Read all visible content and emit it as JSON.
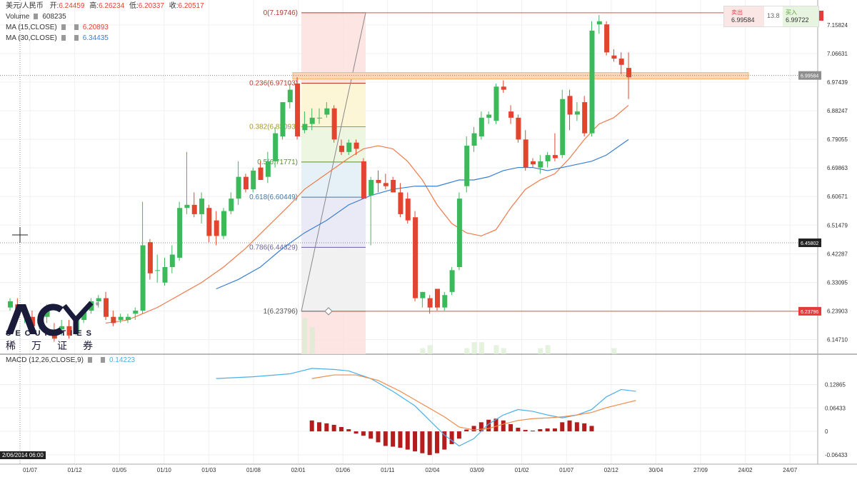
{
  "header": {
    "symbol": "美元/人民币",
    "ohlc": [
      {
        "label": "开:",
        "value": "6.24459"
      },
      {
        "label": "高:",
        "value": "6.26234"
      },
      {
        "label": "低:",
        "value": "6.20337"
      },
      {
        "label": "收:",
        "value": "6.20517"
      }
    ],
    "volume_label": "Volume",
    "volume_value": "608235",
    "ma15_label": "MA (15,CLOSE)",
    "ma15_value": "6.20893",
    "ma30_label": "MA (30,CLOSE)",
    "ma30_value": "6.34435",
    "macd_label": "MACD (12,26,CLOSE,9)",
    "macd_value": "0.14223"
  },
  "trade_box": {
    "sell_label": "卖出",
    "sell_price": "6.99584",
    "spread": "13.8",
    "buy_label": "买入",
    "buy_price": "6.99722"
  },
  "logo": {
    "text": "ACY",
    "sub": "SECURITIES",
    "cn": "稀万证券"
  },
  "corner_label": "2/06/2014 06:00",
  "colors": {
    "up": "#3cb95a",
    "down": "#e2442f",
    "ma15": "#f07a4a",
    "ma30": "#3a7fd0",
    "macd_line": "#4ab0e8",
    "signal_line": "#f08a4b",
    "hist": "#b51c1c",
    "price_tag": "#444444",
    "red_tag": "#e53b3b",
    "fib_zone": "#f6b26b"
  },
  "chart_data": {
    "type": "candlestick",
    "ylim": [
      6.1,
      7.22
    ],
    "y_ticks": [
      "7.15824",
      "7.06631",
      "6.97439",
      "6.88247",
      "6.79055",
      "6.69863",
      "6.60671",
      "6.51479",
      "6.42287",
      "6.33095",
      "6.23903",
      "6.14710"
    ],
    "x_ticks": [
      "01/07",
      "01/12",
      "01/05",
      "01/10",
      "01/03",
      "01/08",
      "02/01",
      "01/06",
      "01/11",
      "02/04",
      "03/09",
      "01/02",
      "01/07",
      "02/12",
      "30/04",
      "27/09",
      "24/02",
      "24/07"
    ],
    "price_tags": {
      "current": "6.99584",
      "cursor": "6.45802",
      "low_line": "6.23796"
    },
    "candles": [
      [
        6.25,
        6.28,
        6.24,
        6.27
      ],
      [
        6.26,
        6.28,
        6.22,
        6.23
      ],
      [
        6.23,
        6.26,
        6.2,
        6.24
      ],
      [
        6.22,
        6.24,
        6.18,
        6.19
      ],
      [
        6.2,
        6.23,
        6.18,
        6.21
      ],
      [
        6.22,
        6.26,
        6.2,
        6.24
      ],
      [
        6.17,
        6.2,
        6.14,
        6.15
      ],
      [
        6.18,
        6.21,
        6.16,
        6.19
      ],
      [
        6.19,
        6.21,
        6.15,
        6.16
      ],
      [
        6.17,
        6.22,
        6.16,
        6.21
      ],
      [
        6.21,
        6.25,
        6.2,
        6.24
      ],
      [
        6.24,
        6.28,
        6.23,
        6.27
      ],
      [
        6.27,
        6.29,
        6.25,
        6.28
      ],
      [
        6.28,
        6.3,
        6.21,
        6.22
      ],
      [
        6.22,
        6.24,
        6.19,
        6.2
      ],
      [
        6.21,
        6.23,
        6.2,
        6.22
      ],
      [
        6.21,
        6.23,
        6.2,
        6.22
      ],
      [
        6.23,
        6.25,
        6.21,
        6.24
      ],
      [
        6.24,
        6.59,
        6.23,
        6.45
      ],
      [
        6.46,
        6.47,
        6.34,
        6.36
      ],
      [
        6.37,
        6.42,
        6.33,
        6.37
      ],
      [
        6.33,
        6.41,
        6.32,
        6.38
      ],
      [
        6.38,
        6.45,
        6.36,
        6.42
      ],
      [
        6.41,
        6.59,
        6.4,
        6.57
      ],
      [
        6.57,
        6.75,
        6.55,
        6.58
      ],
      [
        6.58,
        6.62,
        6.54,
        6.55
      ],
      [
        6.55,
        6.62,
        6.52,
        6.6
      ],
      [
        6.57,
        6.58,
        6.46,
        6.48
      ],
      [
        6.53,
        6.56,
        6.45,
        6.48
      ],
      [
        6.48,
        6.57,
        6.47,
        6.56
      ],
      [
        6.56,
        6.62,
        6.55,
        6.6
      ],
      [
        6.6,
        6.72,
        6.58,
        6.67
      ],
      [
        6.67,
        6.68,
        6.62,
        6.63
      ],
      [
        6.63,
        6.7,
        6.62,
        6.69
      ],
      [
        6.7,
        6.72,
        6.66,
        6.66
      ],
      [
        6.67,
        6.75,
        6.65,
        6.72
      ],
      [
        6.72,
        6.83,
        6.7,
        6.81
      ],
      [
        6.8,
        6.91,
        6.79,
        6.91
      ],
      [
        6.91,
        6.97,
        6.89,
        6.95
      ],
      [
        6.97,
        6.99,
        6.79,
        6.8
      ],
      [
        6.82,
        6.88,
        6.81,
        6.84
      ],
      [
        6.84,
        6.89,
        6.82,
        6.86
      ],
      [
        6.86,
        6.89,
        6.84,
        6.86
      ],
      [
        6.87,
        6.91,
        6.86,
        6.89
      ],
      [
        6.89,
        6.9,
        6.78,
        6.79
      ],
      [
        6.77,
        6.79,
        6.74,
        6.75
      ],
      [
        6.75,
        6.79,
        6.74,
        6.78
      ],
      [
        6.78,
        6.79,
        6.74,
        6.76
      ],
      [
        6.72,
        6.73,
        6.6,
        6.6
      ],
      [
        6.61,
        6.67,
        6.45,
        6.66
      ],
      [
        6.66,
        6.69,
        6.62,
        6.65
      ],
      [
        6.65,
        6.68,
        6.63,
        6.64
      ],
      [
        6.66,
        6.67,
        6.62,
        6.62
      ],
      [
        6.62,
        6.65,
        6.54,
        6.55
      ],
      [
        6.6,
        6.62,
        6.52,
        6.53
      ],
      [
        6.54,
        6.56,
        6.27,
        6.28
      ],
      [
        6.28,
        6.3,
        6.25,
        6.3
      ],
      [
        6.28,
        6.29,
        6.23,
        6.25
      ],
      [
        6.31,
        6.31,
        6.24,
        6.25
      ],
      [
        6.25,
        6.3,
        6.24,
        6.29
      ],
      [
        6.3,
        6.38,
        6.29,
        6.37
      ],
      [
        6.38,
        6.62,
        6.37,
        6.6
      ],
      [
        6.64,
        6.8,
        6.62,
        6.77
      ],
      [
        6.77,
        6.83,
        6.75,
        6.81
      ],
      [
        6.8,
        6.88,
        6.79,
        6.86
      ],
      [
        6.86,
        6.88,
        6.84,
        6.87
      ],
      [
        6.85,
        6.97,
        6.84,
        6.96
      ],
      [
        6.96,
        6.98,
        6.94,
        6.95
      ],
      [
        6.88,
        6.9,
        6.84,
        6.86
      ],
      [
        6.86,
        6.87,
        6.78,
        6.79
      ],
      [
        6.79,
        6.82,
        6.69,
        6.7
      ],
      [
        6.72,
        6.73,
        6.7,
        6.71
      ],
      [
        6.7,
        6.74,
        6.68,
        6.72
      ],
      [
        6.72,
        6.75,
        6.7,
        6.74
      ],
      [
        6.74,
        6.81,
        6.72,
        6.73
      ],
      [
        6.74,
        6.95,
        6.73,
        6.92
      ],
      [
        6.93,
        6.95,
        6.82,
        6.87
      ],
      [
        6.87,
        6.91,
        6.85,
        6.88
      ],
      [
        6.91,
        6.93,
        6.8,
        6.81
      ],
      [
        6.81,
        7.17,
        6.8,
        7.14
      ],
      [
        7.16,
        7.19,
        7.13,
        7.17
      ],
      [
        7.16,
        7.17,
        7.06,
        7.07
      ],
      [
        7.06,
        7.08,
        7.04,
        7.05
      ],
      [
        7.05,
        7.07,
        7.0,
        7.03
      ],
      [
        7.02,
        7.07,
        6.92,
        6.99
      ]
    ],
    "ma15": [
      [
        13,
        6.2
      ],
      [
        16,
        6.21
      ],
      [
        18,
        6.23
      ],
      [
        20,
        6.25
      ],
      [
        23,
        6.29
      ],
      [
        26,
        6.33
      ],
      [
        29,
        6.38
      ],
      [
        32,
        6.44
      ],
      [
        35,
        6.51
      ],
      [
        38,
        6.58
      ],
      [
        40,
        6.63
      ],
      [
        43,
        6.68
      ],
      [
        46,
        6.73
      ],
      [
        48,
        6.76
      ],
      [
        50,
        6.77
      ],
      [
        52,
        6.76
      ],
      [
        54,
        6.72
      ],
      [
        56,
        6.66
      ],
      [
        58,
        6.58
      ],
      [
        60,
        6.52
      ],
      [
        62,
        6.49
      ],
      [
        64,
        6.48
      ],
      [
        66,
        6.5
      ],
      [
        68,
        6.57
      ],
      [
        70,
        6.63
      ],
      [
        72,
        6.66
      ],
      [
        74,
        6.68
      ],
      [
        76,
        6.73
      ],
      [
        78,
        6.79
      ],
      [
        80,
        6.84
      ],
      [
        82,
        6.86
      ],
      [
        84,
        6.9
      ]
    ],
    "ma30": [
      [
        28,
        6.31
      ],
      [
        31,
        6.34
      ],
      [
        34,
        6.38
      ],
      [
        37,
        6.44
      ],
      [
        40,
        6.49
      ],
      [
        43,
        6.53
      ],
      [
        46,
        6.58
      ],
      [
        49,
        6.61
      ],
      [
        52,
        6.63
      ],
      [
        55,
        6.64
      ],
      [
        58,
        6.64
      ],
      [
        61,
        6.66
      ],
      [
        63,
        6.66
      ],
      [
        65,
        6.67
      ],
      [
        67,
        6.69
      ],
      [
        69,
        6.7
      ],
      [
        71,
        6.7
      ],
      [
        73,
        6.69
      ],
      [
        75,
        6.7
      ],
      [
        77,
        6.71
      ],
      [
        79,
        6.72
      ],
      [
        81,
        6.74
      ],
      [
        84,
        6.79
      ]
    ],
    "fibonacci": [
      {
        "label": "0(7.19746)",
        "value": 7.19746
      },
      {
        "label": "0.236(6.97103)",
        "value": 6.97103
      },
      {
        "label": "0.382(6.83093)",
        "value": 6.83093
      },
      {
        "label": "0.5(6.71771)",
        "value": 6.71771
      },
      {
        "label": "0.618(6.60449)",
        "value": 6.60449
      },
      {
        "label": "0.786(6.44329)",
        "value": 6.44329
      },
      {
        "label": "1(6.23796)",
        "value": 6.23796
      }
    ],
    "macd": {
      "y_ticks": [
        "0.12865",
        "0.06433",
        "0",
        "-0.06433"
      ],
      "ylim": [
        -0.09,
        0.21
      ],
      "macd_line": [
        [
          28,
          0.145
        ],
        [
          33,
          0.15
        ],
        [
          38,
          0.158
        ],
        [
          41,
          0.173
        ],
        [
          44,
          0.17
        ],
        [
          46,
          0.166
        ],
        [
          49,
          0.145
        ],
        [
          52,
          0.11
        ],
        [
          55,
          0.07
        ],
        [
          57,
          0.03
        ],
        [
          59,
          -0.01
        ],
        [
          61,
          -0.04
        ],
        [
          63,
          -0.02
        ],
        [
          65,
          0.02
        ],
        [
          67,
          0.045
        ],
        [
          69,
          0.06
        ],
        [
          71,
          0.055
        ],
        [
          73,
          0.045
        ],
        [
          75,
          0.037
        ],
        [
          77,
          0.045
        ],
        [
          79,
          0.06
        ],
        [
          81,
          0.095
        ],
        [
          83,
          0.115
        ],
        [
          85,
          0.11
        ]
      ],
      "signal_line": [
        [
          41,
          0.145
        ],
        [
          44,
          0.155
        ],
        [
          47,
          0.155
        ],
        [
          50,
          0.14
        ],
        [
          53,
          0.11
        ],
        [
          56,
          0.075
        ],
        [
          59,
          0.04
        ],
        [
          61,
          0.012
        ],
        [
          63,
          0.004
        ],
        [
          65,
          0.008
        ],
        [
          67,
          0.02
        ],
        [
          69,
          0.03
        ],
        [
          71,
          0.035
        ],
        [
          73,
          0.037
        ],
        [
          75,
          0.04
        ],
        [
          77,
          0.045
        ],
        [
          79,
          0.052
        ],
        [
          81,
          0.065
        ],
        [
          83,
          0.075
        ],
        [
          85,
          0.085
        ]
      ],
      "histogram": [
        [
          41,
          0.03
        ],
        [
          42,
          0.025
        ],
        [
          43,
          0.022
        ],
        [
          44,
          0.018
        ],
        [
          45,
          0.012
        ],
        [
          46,
          0.006
        ],
        [
          47,
          -0.006
        ],
        [
          48,
          -0.012
        ],
        [
          49,
          -0.02
        ],
        [
          50,
          -0.03
        ],
        [
          51,
          -0.04
        ],
        [
          52,
          -0.042
        ],
        [
          53,
          -0.045
        ],
        [
          54,
          -0.05
        ],
        [
          55,
          -0.055
        ],
        [
          56,
          -0.06
        ],
        [
          57,
          -0.065
        ],
        [
          58,
          -0.06
        ],
        [
          59,
          -0.05
        ],
        [
          60,
          -0.035
        ],
        [
          61,
          -0.02
        ],
        [
          62,
          0.005
        ],
        [
          63,
          0.015
        ],
        [
          64,
          0.025
        ],
        [
          65,
          0.032
        ],
        [
          66,
          0.035
        ],
        [
          67,
          0.03
        ],
        [
          68,
          0.02
        ],
        [
          69,
          0.01
        ],
        [
          70,
          0.004
        ],
        [
          71,
          0.002
        ],
        [
          72,
          0.006
        ],
        [
          73,
          0.008
        ],
        [
          74,
          0.008
        ],
        [
          75,
          0.025
        ],
        [
          76,
          0.03
        ],
        [
          77,
          0.025
        ],
        [
          78,
          0.022
        ],
        [
          79,
          0.015
        ]
      ]
    }
  }
}
